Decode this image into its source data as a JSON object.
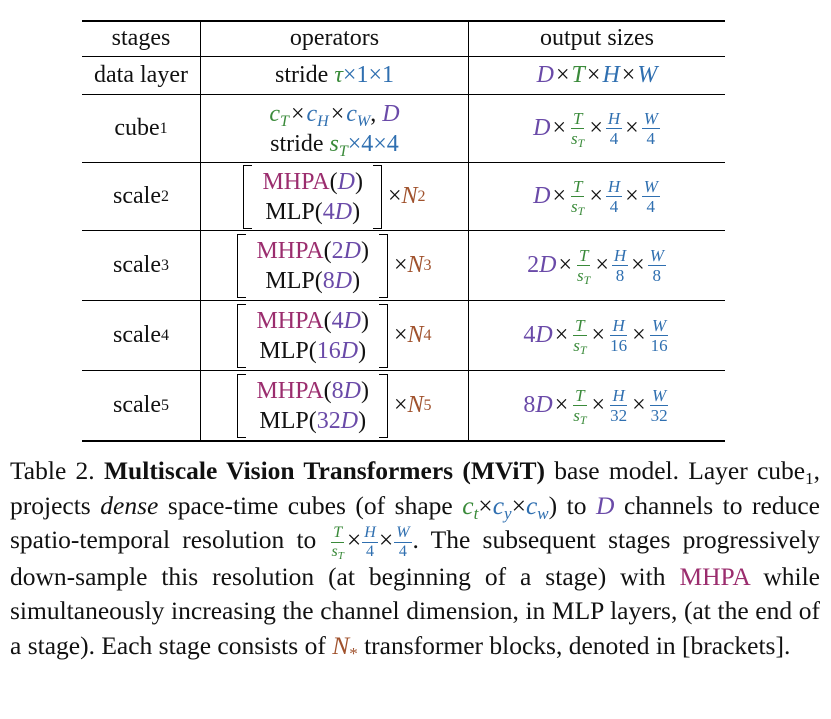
{
  "table": {
    "headers": {
      "stages": "stages",
      "operators": "operators",
      "output_sizes": "output sizes"
    },
    "data_layer": {
      "stage": "data layer",
      "op_prefix": "stride",
      "op_tau": "τ",
      "op_rest": "×1×1",
      "output": {
        "D": "D",
        "T": "T",
        "H": "H",
        "W": "W"
      }
    },
    "cube": {
      "stage": "cube",
      "stage_sub": "1",
      "op_line1": {
        "c": "c",
        "T": "T",
        "H": "H",
        "W": "W",
        "D": "D"
      },
      "op_line2": {
        "prefix": "stride",
        "s": "s",
        "s_sub": "T",
        "rest": "×4×4"
      },
      "output": {
        "D": "D",
        "T": "T",
        "sT": "s",
        "sT_sub": "T",
        "H": "H",
        "h_den": "4",
        "W": "W",
        "w_den": "4"
      }
    },
    "scales": [
      {
        "name": "scale",
        "sub": "2",
        "mhpa": "MHPA",
        "mhpa_arg": "D",
        "mhpa_coef": "",
        "mlp": "MLP",
        "mlp_coef": "4",
        "mlp_arg": "D",
        "N": "N",
        "N_sub": "2",
        "out_coef": "",
        "out_D": "D",
        "h_den": "4",
        "w_den": "4"
      },
      {
        "name": "scale",
        "sub": "3",
        "mhpa": "MHPA",
        "mhpa_arg": "D",
        "mhpa_coef": "2",
        "mlp": "MLP",
        "mlp_coef": "8",
        "mlp_arg": "D",
        "N": "N",
        "N_sub": "3",
        "out_coef": "2",
        "out_D": "D",
        "h_den": "8",
        "w_den": "8"
      },
      {
        "name": "scale",
        "sub": "4",
        "mhpa": "MHPA",
        "mhpa_arg": "D",
        "mhpa_coef": "4",
        "mlp": "MLP",
        "mlp_coef": "16",
        "mlp_arg": "D",
        "N": "N",
        "N_sub": "4",
        "out_coef": "4",
        "out_D": "D",
        "h_den": "16",
        "w_den": "16"
      },
      {
        "name": "scale",
        "sub": "5",
        "mhpa": "MHPA",
        "mhpa_arg": "D",
        "mhpa_coef": "8",
        "mlp": "MLP",
        "mlp_coef": "32",
        "mlp_arg": "D",
        "N": "N",
        "N_sub": "5",
        "out_coef": "8",
        "out_D": "D",
        "h_den": "32",
        "w_den": "32"
      }
    ],
    "frac_T": "T",
    "frac_sT": "s",
    "frac_sT_sub": "T",
    "frac_H": "H",
    "frac_W": "W"
  },
  "caption": {
    "label": "Table 2.",
    "bold_title": "Multiscale Vision Transformers (MViT)",
    "after_title": " base model. Layer cube",
    "cube_sub": "1",
    "t1": ", projects ",
    "dense": "dense",
    "t2": " space-time cubes (of shape ",
    "ct": "c",
    "ct_sub": "t",
    "cy": "c",
    "cy_sub": "y",
    "cw": "c",
    "cw_sub": "w",
    "t3": ") to ",
    "D": "D",
    "t4": " channels to reduce spatio-temporal resolution to ",
    "fT": "T",
    "fsT": "s",
    "fsT_sub": "T",
    "fH": "H",
    "f4a": "4",
    "fW": "W",
    "f4b": "4",
    "t5": ". The subsequent stages progressively down-sample this resolution (at beginning of a stage) with ",
    "MHPA": "MHPA",
    "t6": " while simultaneously increasing the channel dimension, in MLP layers, (at the end of a stage). Each stage consists of ",
    "N": "N",
    "N_sub": "*",
    "t7": " transformer blocks, denoted in [brackets]."
  }
}
